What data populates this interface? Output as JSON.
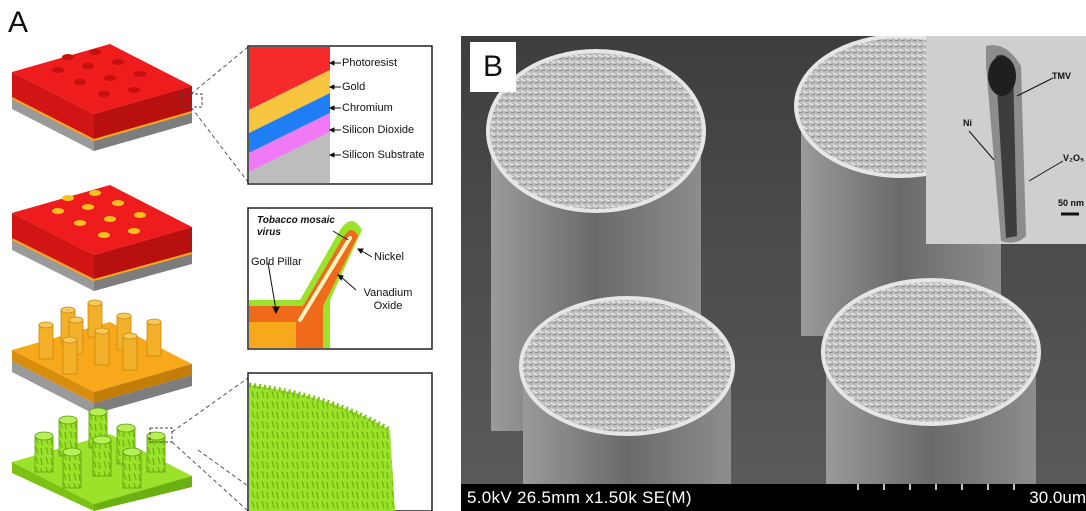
{
  "panel_a": {
    "label": "A",
    "layer_labels": [
      "Photoresist",
      "Gold",
      "Chromium",
      "Silicon Dioxide",
      "Silicon Substrate"
    ],
    "layer_colors": {
      "photoresist": "#f52a2a",
      "gold": "#f8c540",
      "chromium": "#1f7ef5",
      "silicon_dioxide": "#f07af5",
      "silicon_substrate": "#bdbdbd"
    },
    "detail": {
      "virus_label": "Tobacco mosaic virus",
      "nickel_label": "Nickel",
      "pillar_label": "Gold Pillar",
      "vanadium_label": "Vanadium Oxide"
    },
    "colors": {
      "red": "#ee1c1c",
      "gold": "#f7a81b",
      "green": "#9be22a",
      "gray": "#9e9e9e"
    }
  },
  "panel_b": {
    "label": "B",
    "sem_info": "5.0kV 26.5mm x1.50k SE(M)",
    "scale_label": "30.0um",
    "inset": {
      "tmv_label": "TMV",
      "ni_label": "Ni",
      "v2o5_label": "V₂O₅",
      "scale_label": "50 nm"
    }
  }
}
